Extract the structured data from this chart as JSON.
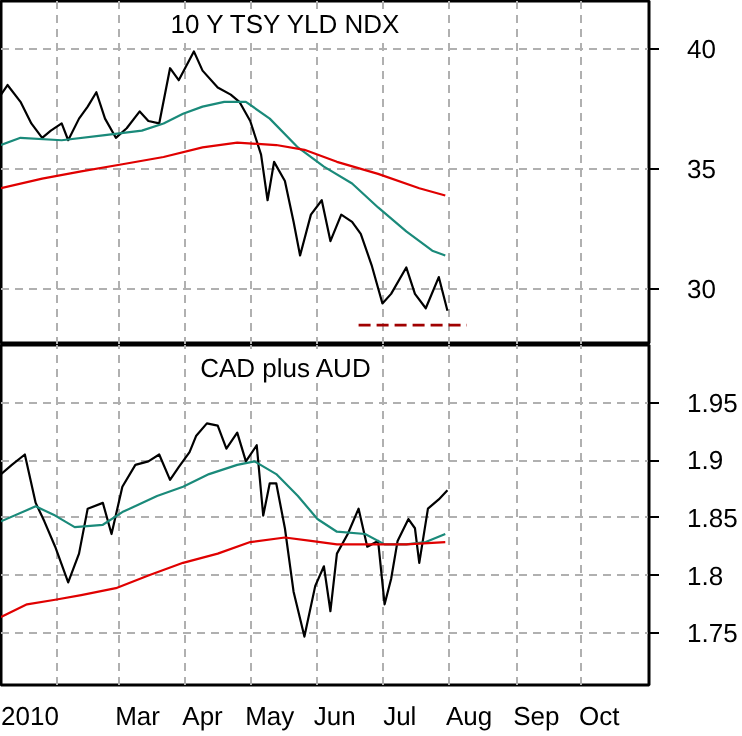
{
  "chart_data": [
    {
      "type": "line",
      "title": "10 Y TSY YLD NDX",
      "xlim": [
        "2010-01-06",
        "2010-11-01"
      ],
      "ylim": [
        27.67,
        42
      ],
      "yticks": [
        30,
        35,
        40
      ],
      "grid": true,
      "tick_labels": "y",
      "xticks": [
        {
          "value": "2010-02-01",
          "label": null
        },
        {
          "value": "2010-03-01",
          "label": null
        },
        {
          "value": "2010-04-01",
          "label": null
        },
        {
          "value": "2010-05-01",
          "label": null
        },
        {
          "value": "2010-06-01",
          "label": null
        },
        {
          "value": "2010-07-01",
          "label": null
        },
        {
          "value": "2010-08-01",
          "label": null
        },
        {
          "value": "2010-09-01",
          "label": null
        },
        {
          "value": "2010-10-01",
          "label": null
        }
      ],
      "series": [
        {
          "color": "#000000",
          "x": [
            "2010-01-06",
            "2010-01-09",
            "2010-01-15",
            "2010-01-20",
            "2010-01-25",
            "2010-01-29",
            "2010-02-03",
            "2010-02-06",
            "2010-02-11",
            "2010-02-15",
            "2010-02-19",
            "2010-02-23",
            "2010-02-28",
            "2010-03-05",
            "2010-03-11",
            "2010-03-15",
            "2010-03-20",
            "2010-03-25",
            "2010-03-29",
            "2010-04-05",
            "2010-04-09",
            "2010-04-16",
            "2010-04-22",
            "2010-04-26",
            "2010-05-01",
            "2010-05-06",
            "2010-05-09",
            "2010-05-12",
            "2010-05-17",
            "2010-05-21",
            "2010-05-24",
            "2010-05-29",
            "2010-06-03",
            "2010-06-07",
            "2010-06-12",
            "2010-06-17",
            "2010-06-21",
            "2010-06-26",
            "2010-07-01",
            "2010-07-05",
            "2010-07-12",
            "2010-07-16",
            "2010-07-21",
            "2010-07-27",
            "2010-07-31"
          ],
          "values": [
            38.1,
            38.5,
            37.8,
            36.9,
            36.3,
            36.6,
            36.9,
            36.2,
            37.1,
            37.6,
            38.2,
            37.1,
            36.3,
            36.7,
            37.4,
            37.0,
            36.9,
            39.2,
            38.7,
            39.9,
            39.1,
            38.4,
            38.1,
            37.8,
            37.0,
            35.6,
            33.7,
            35.3,
            34.5,
            32.8,
            31.4,
            33.1,
            33.7,
            32.0,
            33.1,
            32.8,
            32.3,
            31.0,
            29.4,
            29.8,
            30.9,
            29.8,
            29.2,
            30.5,
            29.1
          ]
        },
        {
          "color": "#1a8a7a",
          "x": [
            "2010-01-06",
            "2010-01-15",
            "2010-02-03",
            "2010-02-22",
            "2010-03-12",
            "2010-03-22",
            "2010-03-31",
            "2010-04-09",
            "2010-04-19",
            "2010-04-29",
            "2010-05-10",
            "2010-05-23",
            "2010-06-04",
            "2010-06-17",
            "2010-06-29",
            "2010-07-12",
            "2010-07-24",
            "2010-07-30"
          ],
          "values": [
            36.0,
            36.3,
            36.2,
            36.4,
            36.6,
            36.9,
            37.3,
            37.6,
            37.8,
            37.8,
            37.1,
            35.9,
            35.1,
            34.4,
            33.4,
            32.4,
            31.6,
            31.4
          ]
        },
        {
          "color": "#e00000",
          "x": [
            "2010-01-06",
            "2010-01-25",
            "2010-02-12",
            "2010-03-03",
            "2010-03-22",
            "2010-04-09",
            "2010-04-25",
            "2010-05-13",
            "2010-05-26",
            "2010-06-10",
            "2010-06-29",
            "2010-07-18",
            "2010-07-30"
          ],
          "values": [
            34.2,
            34.6,
            34.9,
            35.2,
            35.5,
            35.9,
            36.1,
            36.0,
            35.8,
            35.3,
            34.8,
            34.2,
            33.9
          ]
        },
        {
          "color": "#a00000",
          "line_style": "dashed",
          "x": [
            "2010-06-20",
            "2010-08-09"
          ],
          "values": [
            28.5,
            28.5
          ]
        }
      ]
    },
    {
      "type": "line",
      "title": "CAD plus AUD",
      "xlim": [
        "2010-01-06",
        "2010-11-01"
      ],
      "ylim": [
        1.705,
        2.0
      ],
      "yticks": [
        1.75,
        1.8,
        1.85,
        1.9,
        1.95
      ],
      "grid": true,
      "xticks": [
        {
          "value": "2010-01-17",
          "label": "2010"
        },
        {
          "value": "2010-02-01",
          "label": null
        },
        {
          "value": "2010-03-01",
          "label": null
        },
        {
          "value": "2010-03-10",
          "label": "Mar"
        },
        {
          "value": "2010-04-01",
          "label": null
        },
        {
          "value": "2010-04-09",
          "label": "Apr"
        },
        {
          "value": "2010-05-01",
          "label": null
        },
        {
          "value": "2010-05-10",
          "label": "May"
        },
        {
          "value": "2010-06-01",
          "label": null
        },
        {
          "value": "2010-06-09",
          "label": "Jun"
        },
        {
          "value": "2010-07-01",
          "label": null
        },
        {
          "value": "2010-07-09",
          "label": "Jul"
        },
        {
          "value": "2010-08-01",
          "label": null
        },
        {
          "value": "2010-08-10",
          "label": "Aug"
        },
        {
          "value": "2010-09-01",
          "label": null
        },
        {
          "value": "2010-09-10",
          "label": "Sep"
        },
        {
          "value": "2010-10-01",
          "label": null
        },
        {
          "value": "2010-10-09",
          "label": "Oct"
        }
      ],
      "series": [
        {
          "color": "#000000",
          "x": [
            "2010-01-06",
            "2010-01-11",
            "2010-01-17",
            "2010-01-22",
            "2010-01-26",
            "2010-01-31",
            "2010-02-06",
            "2010-02-11",
            "2010-02-15",
            "2010-02-22",
            "2010-02-26",
            "2010-03-03",
            "2010-03-09",
            "2010-03-15",
            "2010-03-20",
            "2010-03-25",
            "2010-03-29",
            "2010-04-03",
            "2010-04-06",
            "2010-04-11",
            "2010-04-16",
            "2010-04-20",
            "2010-04-25",
            "2010-04-29",
            "2010-05-04",
            "2010-05-07",
            "2010-05-10",
            "2010-05-13",
            "2010-05-17",
            "2010-05-21",
            "2010-05-26",
            "2010-05-31",
            "2010-06-04",
            "2010-06-07",
            "2010-06-10",
            "2010-06-15",
            "2010-06-20",
            "2010-06-24",
            "2010-06-29",
            "2010-07-02",
            "2010-07-05",
            "2010-07-08",
            "2010-07-13",
            "2010-07-16",
            "2010-07-18",
            "2010-07-22",
            "2010-07-27",
            "2010-07-31"
          ],
          "values": [
            1.888,
            1.896,
            1.905,
            1.863,
            1.847,
            1.825,
            1.794,
            1.819,
            1.858,
            1.863,
            1.836,
            1.877,
            1.896,
            1.899,
            1.905,
            1.883,
            1.894,
            1.907,
            1.921,
            1.932,
            1.93,
            1.91,
            1.924,
            1.899,
            1.913,
            1.852,
            1.88,
            1.88,
            1.841,
            1.786,
            1.747,
            1.791,
            1.808,
            1.769,
            1.819,
            1.836,
            1.858,
            1.825,
            1.83,
            1.775,
            1.797,
            1.83,
            1.849,
            1.841,
            1.811,
            1.858,
            1.866,
            1.874
          ]
        },
        {
          "color": "#1a8a7a",
          "x": [
            "2010-01-06",
            "2010-01-22",
            "2010-01-31",
            "2010-02-09",
            "2010-02-22",
            "2010-03-03",
            "2010-03-19",
            "2010-03-31",
            "2010-04-12",
            "2010-04-25",
            "2010-05-03",
            "2010-05-13",
            "2010-05-23",
            "2010-06-01",
            "2010-06-10",
            "2010-06-23",
            "2010-07-02",
            "2010-07-12",
            "2010-07-21",
            "2010-07-30"
          ],
          "values": [
            1.847,
            1.86,
            1.852,
            1.842,
            1.844,
            1.855,
            1.869,
            1.877,
            1.888,
            1.896,
            1.899,
            1.888,
            1.869,
            1.849,
            1.838,
            1.836,
            1.827,
            1.827,
            1.829,
            1.836
          ]
        },
        {
          "color": "#e00000",
          "x": [
            "2010-01-06",
            "2010-01-18",
            "2010-01-31",
            "2010-02-12",
            "2010-02-28",
            "2010-03-15",
            "2010-03-31",
            "2010-04-16",
            "2010-05-01",
            "2010-05-17",
            "2010-05-29",
            "2010-06-10",
            "2010-06-26",
            "2010-07-12",
            "2010-07-30"
          ],
          "values": [
            1.764,
            1.775,
            1.779,
            1.783,
            1.789,
            1.8,
            1.811,
            1.819,
            1.829,
            1.833,
            1.83,
            1.827,
            1.827,
            1.827,
            1.829
          ]
        }
      ]
    }
  ]
}
